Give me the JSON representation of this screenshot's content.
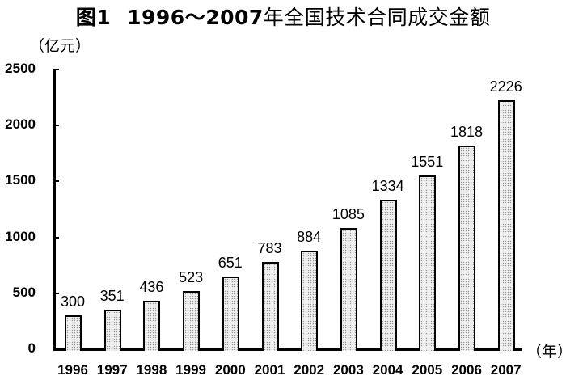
{
  "title": {
    "figure_label": "图1",
    "year_range": "1996～2007",
    "text": "年全国技术合同成交金额"
  },
  "y_unit": "（亿元）",
  "x_unit": "（年）",
  "chart_data": {
    "type": "bar",
    "title": "图1 1996～2007年全国技术合同成交金额",
    "xlabel": "（年）",
    "ylabel": "（亿元）",
    "ylim": [
      0,
      2500
    ],
    "yticks": [
      0,
      500,
      1000,
      1500,
      2000,
      2500
    ],
    "grid": false,
    "legend": null,
    "categories": [
      "1996",
      "1997",
      "1998",
      "1999",
      "2000",
      "2001",
      "2002",
      "2003",
      "2004",
      "2005",
      "2006",
      "2007"
    ],
    "values": [
      300,
      351,
      436,
      523,
      651,
      783,
      884,
      1085,
      1334,
      1551,
      1818,
      2226
    ],
    "data_labels": [
      "300",
      "351",
      "436",
      "523",
      "651",
      "783",
      "884",
      "1085",
      "1334",
      "1551",
      "1818",
      "2226"
    ],
    "colors": {
      "bar_fill": "#f2f2f2",
      "bar_stipple": "#9a9a9a",
      "bar_border": "#000000"
    }
  }
}
